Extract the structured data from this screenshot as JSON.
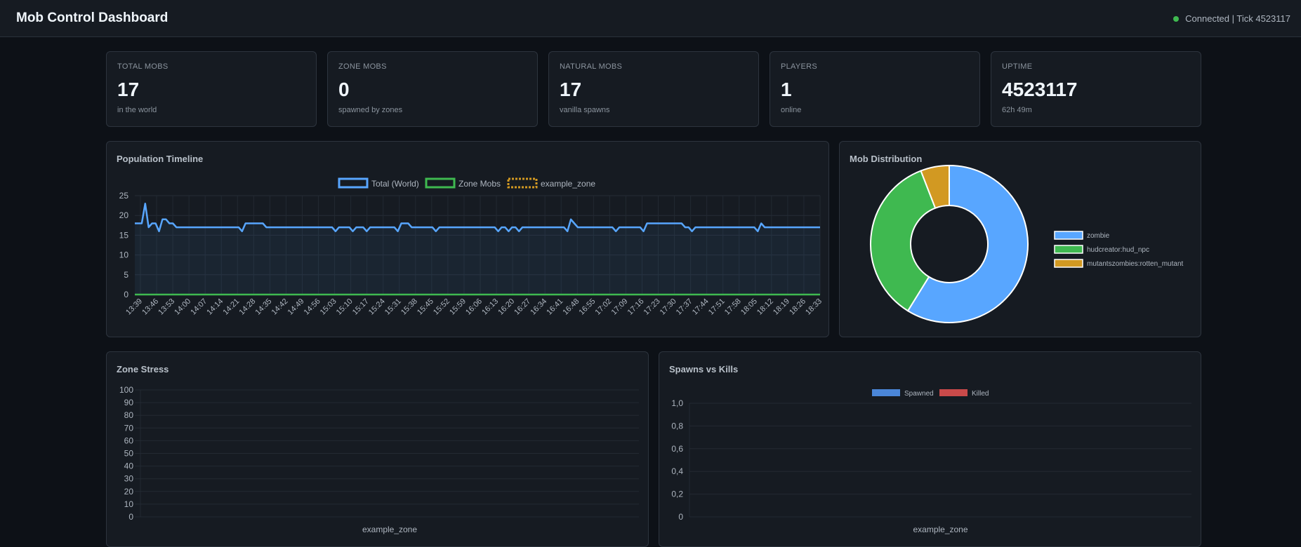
{
  "header": {
    "title": "Mob Control Dashboard",
    "status": "Connected | Tick 4523117",
    "status_color": "#3fb950"
  },
  "stats": [
    {
      "label": "TOTAL MOBS",
      "value": "17",
      "sub": "in the world"
    },
    {
      "label": "ZONE MOBS",
      "value": "0",
      "sub": "spawned by zones"
    },
    {
      "label": "NATURAL MOBS",
      "value": "17",
      "sub": "vanilla spawns"
    },
    {
      "label": "PLAYERS",
      "value": "1",
      "sub": "online"
    },
    {
      "label": "UPTIME",
      "value": "4523117",
      "sub": "62h 49m"
    }
  ],
  "timeline": {
    "title": "Population Timeline",
    "chart_data": {
      "type": "line",
      "legend": [
        "Total (World)",
        "Zone Mobs",
        "example_zone"
      ],
      "colors": [
        "#58a6ff",
        "#3fb950",
        "#d29922"
      ],
      "yticks": [
        0,
        5,
        10,
        15,
        20,
        25
      ],
      "ylim": [
        0,
        25
      ],
      "xticks": [
        "13:39",
        "13:46",
        "13:53",
        "14:00",
        "14:07",
        "14:14",
        "14:21",
        "14:28",
        "14:35",
        "14:42",
        "14:49",
        "14:56",
        "15:03",
        "15:10",
        "15:17",
        "15:24",
        "15:31",
        "15:38",
        "15:45",
        "15:52",
        "15:59",
        "16:06",
        "16:13",
        "16:20",
        "16:27",
        "16:34",
        "16:41",
        "16:48",
        "16:55",
        "17:02",
        "17:09",
        "17:16",
        "17:23",
        "17:30",
        "17:37",
        "17:44",
        "17:51",
        "17:58",
        "18:05",
        "18:12",
        "18:19",
        "18:26",
        "18:33"
      ],
      "series": [
        {
          "name": "Total (World)",
          "values": [
            18,
            18,
            18,
            23,
            17,
            18,
            18,
            16,
            19,
            19,
            18,
            18,
            17,
            17,
            17,
            17,
            17,
            17,
            17,
            17,
            17,
            17,
            17,
            17,
            17,
            17,
            17,
            17,
            17,
            17,
            17,
            16,
            18,
            18,
            18,
            18,
            18,
            18,
            17,
            17,
            17,
            17,
            17,
            17,
            17,
            17,
            17,
            17,
            17,
            17,
            17,
            17,
            17,
            17,
            17,
            17,
            17,
            17,
            16,
            17,
            17,
            17,
            17,
            16,
            17,
            17,
            17,
            16,
            17,
            17,
            17,
            17,
            17,
            17,
            17,
            17,
            16,
            18,
            18,
            18,
            17,
            17,
            17,
            17,
            17,
            17,
            17,
            16,
            17,
            17,
            17,
            17,
            17,
            17,
            17,
            17,
            17,
            17,
            17,
            17,
            17,
            17,
            17,
            17,
            17,
            16,
            17,
            17,
            16,
            17,
            17,
            16,
            17,
            17,
            17,
            17,
            17,
            17,
            17,
            17,
            17,
            17,
            17,
            17,
            17,
            16,
            19,
            18,
            17,
            17,
            17,
            17,
            17,
            17,
            17,
            17,
            17,
            17,
            17,
            16,
            17,
            17,
            17,
            17,
            17,
            17,
            17,
            16,
            18,
            18,
            18,
            18,
            18,
            18,
            18,
            18,
            18,
            18,
            18,
            17,
            17,
            16,
            17,
            17,
            17,
            17,
            17,
            17,
            17,
            17,
            17,
            17,
            17,
            17,
            17,
            17,
            17,
            17,
            17,
            17,
            16,
            18,
            17,
            17,
            17,
            17,
            17,
            17,
            17,
            17,
            17,
            17,
            17,
            17,
            17,
            17,
            17,
            17,
            17
          ]
        },
        {
          "name": "Zone Mobs",
          "values": [
            0,
            0
          ]
        },
        {
          "name": "example_zone",
          "values": []
        }
      ]
    }
  },
  "distribution": {
    "title": "Mob Distribution",
    "chart_data": {
      "type": "pie",
      "labels": [
        "zombie",
        "hudcreator:hud_npc",
        "mutantszombies:rotten_mutant"
      ],
      "values": [
        10,
        6,
        1
      ],
      "colors": [
        "#58a6ff",
        "#3fb950",
        "#d29922"
      ]
    }
  },
  "stress": {
    "title": "Zone Stress",
    "chart_data": {
      "type": "bar",
      "categories": [
        "example_zone"
      ],
      "values": [
        0
      ],
      "yticks": [
        0,
        10,
        20,
        30,
        40,
        50,
        60,
        70,
        80,
        90,
        100
      ],
      "ylim": [
        0,
        100
      ]
    }
  },
  "spawns": {
    "title": "Spawns vs Kills",
    "chart_data": {
      "type": "bar",
      "categories": [
        "example_zone"
      ],
      "series": [
        {
          "name": "Spawned",
          "values": [
            0
          ],
          "color": "#4a86d8"
        },
        {
          "name": "Killed",
          "values": [
            0
          ],
          "color": "#c94a4a"
        }
      ],
      "yticks": [
        "0",
        "0,2",
        "0,4",
        "0,6",
        "0,8",
        "1,0"
      ],
      "ylim": [
        0,
        1
      ]
    }
  }
}
